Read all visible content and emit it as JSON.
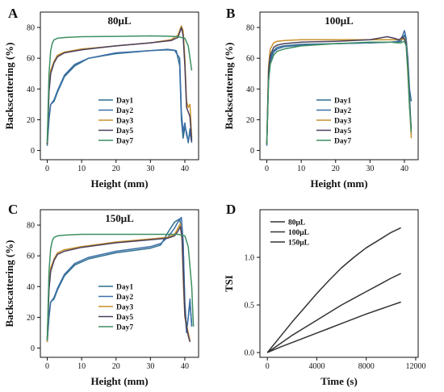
{
  "figure": {
    "colors": {
      "Day1": "#2f6f8f",
      "Day2": "#3c6fa8",
      "Day3": "#c8912b",
      "Day5": "#4a3f5c",
      "Day7": "#3d8f62",
      "80µL": "#3e7d58",
      "100µL": "#4a72b0",
      "150µL": "#c08b2f"
    }
  },
  "chart_data": [
    {
      "id": "A",
      "type": "line",
      "panel_label": "A",
      "title": "80μL",
      "xlabel": "Height (mm)",
      "ylabel": "Backscattering (%)",
      "xlim": [
        -2,
        44
      ],
      "ylim": [
        -6,
        90
      ],
      "xticks": [
        0,
        10,
        20,
        30,
        40
      ],
      "yticks": [
        0,
        20,
        40,
        60,
        80
      ],
      "legend": "bottom-right",
      "series": [
        {
          "name": "Day1",
          "x": [
            0,
            0.5,
            1,
            2,
            3,
            5,
            8,
            12,
            20,
            30,
            35,
            37.5,
            38.5,
            39,
            39.5,
            40,
            40.5,
            41,
            41.5,
            42
          ],
          "y": [
            3,
            20,
            30,
            32,
            38,
            48,
            55,
            60,
            63,
            65,
            65.5,
            65,
            55,
            20,
            8,
            15,
            12,
            5,
            14,
            8
          ]
        },
        {
          "name": "Day2",
          "x": [
            0,
            0.5,
            1,
            2,
            3,
            5,
            8,
            12,
            20,
            30,
            35,
            37,
            38.5,
            39,
            39.5,
            40,
            40.5,
            41,
            41.5,
            42
          ],
          "y": [
            4,
            22,
            30,
            33,
            39,
            49,
            56,
            60,
            63.5,
            65,
            65.8,
            65.2,
            60,
            25,
            12,
            18,
            10,
            6,
            12,
            5
          ]
        },
        {
          "name": "Day3",
          "x": [
            0,
            0.5,
            1,
            2,
            3,
            5,
            10,
            20,
            30,
            36,
            38,
            39,
            39.5,
            40,
            40.5,
            41,
            41.5,
            42
          ],
          "y": [
            4,
            40,
            52,
            58,
            62,
            64,
            66,
            68,
            70,
            72,
            75,
            81,
            78,
            60,
            32,
            28,
            30,
            8
          ]
        },
        {
          "name": "Day5",
          "x": [
            0,
            0.5,
            1,
            2,
            3,
            5,
            10,
            20,
            30,
            36,
            38,
            39,
            39.5,
            40,
            40.5,
            41,
            41.5,
            42
          ],
          "y": [
            4,
            38,
            50,
            57,
            61,
            63.5,
            65.5,
            68,
            70,
            71.5,
            73.5,
            80,
            75,
            55,
            28,
            25,
            22,
            6
          ]
        },
        {
          "name": "Day7",
          "x": [
            0,
            0.5,
            1,
            1.5,
            2,
            3,
            5,
            10,
            20,
            30,
            35,
            38,
            40,
            41,
            42
          ],
          "y": [
            5,
            50,
            65,
            70,
            72,
            73,
            73.5,
            74,
            74.2,
            74.5,
            74.3,
            74,
            73,
            68,
            52
          ]
        }
      ]
    },
    {
      "id": "B",
      "type": "line",
      "panel_label": "B",
      "title": "100μL",
      "xlabel": "Height (mm)",
      "ylabel": "Backscattering (%)",
      "xlim": [
        -2,
        44
      ],
      "ylim": [
        -6,
        90
      ],
      "xticks": [
        0,
        10,
        20,
        30,
        40
      ],
      "yticks": [
        0,
        20,
        40,
        60,
        80
      ],
      "legend": "bottom-right",
      "series": [
        {
          "name": "Day1",
          "x": [
            0,
            0.5,
            1,
            2,
            3,
            5,
            10,
            20,
            30,
            36,
            38,
            39,
            40,
            40.5,
            41,
            41.5,
            42
          ],
          "y": [
            4,
            50,
            60,
            65,
            67,
            68,
            69,
            69.5,
            70,
            70.5,
            70.5,
            71,
            75,
            72,
            60,
            40,
            32
          ]
        },
        {
          "name": "Day2",
          "x": [
            0,
            0.5,
            1,
            2,
            3,
            5,
            10,
            20,
            30,
            36,
            38,
            39,
            40,
            40.5,
            41,
            41.5,
            42
          ],
          "y": [
            3,
            48,
            58,
            64,
            66,
            67.5,
            68.5,
            69.5,
            70,
            70.5,
            71,
            72,
            78,
            73,
            58,
            36,
            10
          ]
        },
        {
          "name": "Day3",
          "x": [
            0,
            0.5,
            1,
            2,
            3,
            5,
            10,
            20,
            30,
            36,
            38,
            39,
            40,
            40.5,
            41,
            41.5,
            42
          ],
          "y": [
            5,
            55,
            66,
            70,
            71,
            71.5,
            72,
            72,
            72,
            72,
            72,
            72,
            73,
            70,
            50,
            30,
            8
          ]
        },
        {
          "name": "Day5",
          "x": [
            0,
            0.5,
            1,
            2,
            3,
            5,
            10,
            20,
            30,
            35,
            37,
            38.5,
            39.5,
            40.5,
            41,
            41.5,
            42
          ],
          "y": [
            4,
            52,
            62,
            67,
            68.5,
            69.5,
            70.5,
            71,
            72,
            74,
            73,
            72,
            74,
            70,
            55,
            30,
            14
          ]
        },
        {
          "name": "Day7",
          "x": [
            0,
            0.5,
            1,
            2,
            3,
            5,
            10,
            20,
            30,
            36,
            38,
            39,
            40,
            40.5,
            41,
            41.5,
            42
          ],
          "y": [
            4,
            45,
            56,
            62,
            64.5,
            66,
            68,
            69.5,
            70.5,
            70.5,
            70,
            70,
            71,
            68,
            52,
            28,
            12
          ]
        }
      ]
    },
    {
      "id": "C",
      "type": "line",
      "panel_label": "C",
      "title": "150μL",
      "xlabel": "Height (mm)",
      "ylabel": "Backscattering (%)",
      "xlim": [
        -2,
        44
      ],
      "ylim": [
        -6,
        90
      ],
      "xticks": [
        0,
        10,
        20,
        30,
        40
      ],
      "yticks": [
        0,
        20,
        40,
        60,
        80
      ],
      "legend": "bottom-right",
      "series": [
        {
          "name": "Day1",
          "x": [
            0,
            0.5,
            1,
            2,
            3,
            5,
            8,
            12,
            20,
            30,
            33,
            35,
            37,
            38.5,
            39.5,
            40,
            40.5,
            41,
            41.5,
            42
          ],
          "y": [
            4,
            20,
            30,
            32,
            38,
            47,
            54,
            58,
            62,
            65,
            67,
            75,
            82,
            84,
            70,
            30,
            12,
            20,
            30,
            15
          ]
        },
        {
          "name": "Day2",
          "x": [
            0,
            0.5,
            1,
            2,
            3,
            5,
            8,
            12,
            20,
            30,
            33,
            35,
            37,
            38,
            39,
            39.5,
            40,
            40.5,
            41,
            41.5,
            42
          ],
          "y": [
            5,
            22,
            30,
            33,
            39,
            48,
            55,
            59,
            63,
            66,
            68,
            72,
            78,
            82,
            85,
            70,
            25,
            10,
            20,
            32,
            14
          ]
        },
        {
          "name": "Day3",
          "x": [
            0,
            0.5,
            1,
            2,
            3,
            5,
            10,
            20,
            30,
            35,
            37,
            38,
            38.7,
            39.2,
            39.6,
            40,
            40.5,
            41,
            41.5
          ],
          "y": [
            4,
            40,
            52,
            58,
            62,
            64,
            66,
            69,
            71,
            72,
            74,
            78,
            81,
            70,
            40,
            20,
            15,
            10,
            5
          ]
        },
        {
          "name": "Day5",
          "x": [
            0,
            0.5,
            1,
            2,
            3,
            5,
            10,
            20,
            30,
            35,
            37,
            38,
            38.7,
            39.2,
            39.6,
            40,
            40.5,
            41,
            41.5
          ],
          "y": [
            5,
            38,
            50,
            57,
            61,
            63,
            65.5,
            68.5,
            70.5,
            71.5,
            73,
            76,
            79,
            72,
            45,
            22,
            14,
            8,
            4
          ]
        },
        {
          "name": "Day7",
          "x": [
            0,
            0.5,
            1,
            1.5,
            2,
            3,
            5,
            10,
            20,
            30,
            35,
            38,
            40,
            41,
            42,
            42.5
          ],
          "y": [
            5,
            50,
            65,
            70,
            72,
            73,
            73.5,
            74,
            74,
            74,
            74,
            74,
            73,
            66,
            40,
            14
          ]
        }
      ]
    },
    {
      "id": "D",
      "type": "line",
      "panel_label": "D",
      "xlabel": "Time (s)",
      "ylabel": "TSI",
      "xlim": [
        -600,
        12200
      ],
      "ylim": [
        -0.05,
        1.5
      ],
      "xticks": [
        0,
        4000,
        8000,
        12000
      ],
      "yticks": [
        0.0,
        0.5,
        1.0
      ],
      "ytick_format": 1,
      "legend": "top-left",
      "series": [
        {
          "name": "80μL",
          "x": [
            0,
            1000,
            2000,
            3000,
            4000,
            5000,
            6000,
            7000,
            8000,
            9000,
            10000,
            10800
          ],
          "y": [
            0,
            0.16,
            0.32,
            0.47,
            0.62,
            0.76,
            0.89,
            1.0,
            1.1,
            1.18,
            1.26,
            1.31
          ]
        },
        {
          "name": "100μL",
          "x": [
            0,
            1000,
            2000,
            3000,
            4000,
            5000,
            6000,
            7000,
            8000,
            9000,
            10000,
            10800
          ],
          "y": [
            0,
            0.055,
            0.105,
            0.155,
            0.205,
            0.255,
            0.305,
            0.355,
            0.405,
            0.45,
            0.495,
            0.53
          ]
        },
        {
          "name": "150μL",
          "x": [
            0,
            1000,
            2000,
            3000,
            4000,
            5000,
            6000,
            7000,
            8000,
            9000,
            10000,
            10800
          ],
          "y": [
            0,
            0.09,
            0.18,
            0.26,
            0.34,
            0.42,
            0.5,
            0.57,
            0.64,
            0.71,
            0.78,
            0.83
          ]
        }
      ]
    }
  ]
}
